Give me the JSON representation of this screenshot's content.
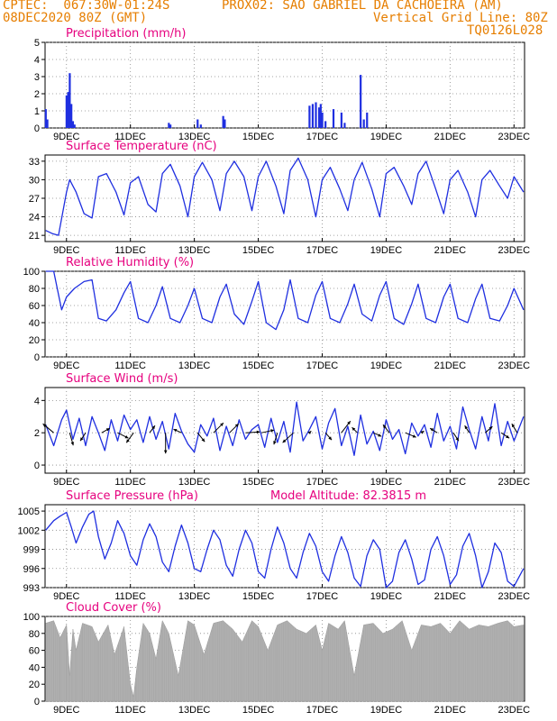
{
  "header": {
    "line1_left": "CPTEC:  067:30W-01:24S",
    "line1_right": "PROX02: SAO GABRIEL DA CACHOEIRA (AM)",
    "line2_left": "08DEC2020 80Z (GMT)",
    "line2_right": "Vertical Grid Line: 80Z",
    "line3_right": "TQ0126L028"
  },
  "colors": {
    "header": "#e67e00",
    "title": "#e6007e",
    "series": "#1f2fe0",
    "cloud": "#b0b0b0"
  },
  "x_ticks": [
    "9DEC",
    "11DEC",
    "13DEC",
    "15DEC",
    "17DEC",
    "19DEC",
    "21DEC",
    "23DEC"
  ],
  "x_tick_days": [
    9,
    11,
    13,
    15,
    17,
    19,
    21,
    23
  ],
  "x_range": [
    8.33,
    23.33
  ],
  "chart_data": [
    {
      "id": "precip",
      "type": "bar",
      "title": "Precipitation (mm/h)",
      "ylim": [
        0,
        5
      ],
      "yticks": [
        0,
        1,
        2,
        3,
        4,
        5
      ],
      "x": [
        8.35,
        8.4,
        9.0,
        9.05,
        9.1,
        9.15,
        9.2,
        9.25,
        12.2,
        12.25,
        13.1,
        13.2,
        13.9,
        13.95,
        16.6,
        16.7,
        16.8,
        16.9,
        16.95,
        17.0,
        17.1,
        17.35,
        17.6,
        17.7,
        18.2,
        18.3,
        18.4
      ],
      "values": [
        1.1,
        0.5,
        1.9,
        2.1,
        3.2,
        1.4,
        0.4,
        0.2,
        0.3,
        0.2,
        0.5,
        0.2,
        0.7,
        0.5,
        1.3,
        1.4,
        1.5,
        1.2,
        1.4,
        0.9,
        0.4,
        1.1,
        0.9,
        0.3,
        3.1,
        0.5,
        0.9
      ]
    },
    {
      "id": "temp",
      "type": "line",
      "title": "Surface Temperature (nC)",
      "ylim": [
        20,
        34
      ],
      "yticks": [
        21,
        24,
        27,
        30,
        33
      ],
      "x": [
        8.35,
        8.55,
        8.75,
        9.0,
        9.1,
        9.3,
        9.55,
        9.8,
        10.0,
        10.25,
        10.55,
        10.8,
        11.0,
        11.25,
        11.55,
        11.8,
        12.0,
        12.25,
        12.55,
        12.8,
        13.0,
        13.25,
        13.55,
        13.8,
        14.0,
        14.25,
        14.55,
        14.8,
        15.0,
        15.25,
        15.55,
        15.8,
        16.0,
        16.25,
        16.55,
        16.8,
        17.0,
        17.25,
        17.55,
        17.8,
        18.0,
        18.25,
        18.55,
        18.8,
        19.0,
        19.25,
        19.55,
        19.8,
        20.0,
        20.25,
        20.55,
        20.8,
        21.0,
        21.25,
        21.55,
        21.8,
        22.0,
        22.25,
        22.55,
        22.8,
        23.0,
        23.3
      ],
      "values": [
        21.8,
        21.3,
        21.0,
        28.0,
        30.0,
        28.0,
        24.5,
        23.8,
        30.5,
        31.0,
        28.0,
        24.3,
        29.5,
        30.5,
        26.0,
        24.8,
        31.0,
        32.5,
        29.0,
        24.0,
        30.5,
        32.8,
        30.0,
        25.0,
        31.0,
        33.0,
        30.5,
        25.0,
        30.5,
        33.0,
        29.0,
        24.5,
        31.5,
        33.5,
        30.0,
        24.0,
        30.0,
        32.0,
        28.5,
        25.0,
        30.0,
        32.8,
        28.5,
        24.0,
        31.0,
        32.0,
        29.0,
        26.0,
        31.0,
        33.0,
        28.5,
        24.5,
        30.0,
        31.5,
        28.0,
        24.0,
        30.0,
        31.5,
        29.0,
        27.0,
        30.5,
        28.0
      ]
    },
    {
      "id": "rh",
      "type": "line",
      "title": "Relative Humidity (%)",
      "ylim": [
        0,
        100
      ],
      "yticks": [
        0,
        20,
        40,
        60,
        80,
        100
      ],
      "x": [
        8.35,
        8.6,
        8.85,
        9.0,
        9.25,
        9.55,
        9.8,
        10.0,
        10.25,
        10.55,
        10.8,
        11.0,
        11.25,
        11.55,
        11.8,
        12.0,
        12.25,
        12.55,
        12.8,
        13.0,
        13.25,
        13.55,
        13.8,
        14.0,
        14.25,
        14.55,
        14.8,
        15.0,
        15.25,
        15.55,
        15.8,
        16.0,
        16.25,
        16.55,
        16.8,
        17.0,
        17.25,
        17.55,
        17.8,
        18.0,
        18.25,
        18.55,
        18.8,
        19.0,
        19.25,
        19.55,
        19.8,
        20.0,
        20.25,
        20.55,
        20.8,
        21.0,
        21.25,
        21.55,
        21.8,
        22.0,
        22.25,
        22.55,
        22.8,
        23.0,
        23.3
      ],
      "values": [
        100,
        100,
        55,
        70,
        80,
        88,
        90,
        45,
        42,
        55,
        75,
        88,
        45,
        40,
        60,
        82,
        45,
        40,
        60,
        80,
        45,
        40,
        70,
        85,
        50,
        38,
        65,
        88,
        40,
        32,
        55,
        90,
        45,
        40,
        72,
        88,
        45,
        40,
        62,
        85,
        50,
        42,
        72,
        88,
        45,
        38,
        62,
        85,
        45,
        40,
        70,
        85,
        45,
        40,
        68,
        85,
        45,
        42,
        60,
        80,
        55
      ]
    },
    {
      "id": "wind",
      "type": "line",
      "title": "Surface Wind (m/s)",
      "ylim": [
        -0.5,
        4.8
      ],
      "yticks": [
        0,
        2,
        4
      ],
      "x": [
        8.35,
        8.6,
        8.85,
        9.0,
        9.2,
        9.4,
        9.6,
        9.8,
        10.0,
        10.2,
        10.4,
        10.6,
        10.8,
        11.0,
        11.2,
        11.4,
        11.6,
        11.8,
        12.0,
        12.2,
        12.4,
        12.6,
        12.8,
        13.0,
        13.2,
        13.4,
        13.6,
        13.8,
        14.0,
        14.2,
        14.4,
        14.6,
        14.8,
        15.0,
        15.2,
        15.4,
        15.6,
        15.8,
        16.0,
        16.2,
        16.4,
        16.6,
        16.8,
        17.0,
        17.2,
        17.4,
        17.6,
        17.8,
        18.0,
        18.2,
        18.4,
        18.6,
        18.8,
        19.0,
        19.2,
        19.4,
        19.6,
        19.8,
        20.0,
        20.2,
        20.4,
        20.6,
        20.8,
        21.0,
        21.2,
        21.4,
        21.6,
        21.8,
        22.0,
        22.2,
        22.4,
        22.6,
        22.8,
        23.0,
        23.3
      ],
      "values": [
        2.5,
        1.2,
        2.8,
        3.4,
        1.6,
        2.9,
        1.2,
        3.0,
        2.0,
        0.9,
        2.8,
        1.5,
        3.1,
        2.2,
        2.8,
        1.4,
        3.0,
        1.6,
        2.7,
        1.0,
        3.2,
        2.1,
        1.3,
        0.8,
        2.5,
        1.8,
        2.9,
        0.9,
        2.4,
        1.2,
        2.8,
        1.6,
        2.2,
        2.5,
        1.1,
        2.9,
        1.4,
        2.7,
        0.8,
        3.9,
        1.5,
        2.2,
        3.0,
        1.0,
        2.6,
        3.5,
        1.2,
        2.4,
        0.6,
        3.1,
        1.3,
        2.1,
        0.9,
        2.8,
        1.6,
        2.2,
        0.7,
        2.6,
        1.8,
        2.5,
        1.1,
        3.2,
        1.5,
        2.4,
        1.0,
        3.6,
        2.2,
        1.0,
        3.0,
        1.5,
        3.8,
        1.2,
        2.7,
        1.5,
        3.0
      ],
      "barbs_x": [
        8.6,
        9.1,
        9.6,
        10.1,
        10.6,
        11.1,
        11.6,
        12.1,
        12.6,
        13.1,
        13.6,
        14.1,
        14.6,
        15.1,
        15.6,
        16.1,
        16.6,
        17.1,
        17.6,
        18.1,
        18.6,
        19.1,
        19.6,
        20.1,
        20.6,
        21.1,
        21.6,
        22.1,
        22.6,
        23.1
      ],
      "barbs_u": [
        -1.2,
        0.4,
        -0.6,
        0.9,
        1.2,
        -0.8,
        0.6,
        0.0,
        -0.9,
        0.8,
        1.1,
        1.0,
        1.6,
        1.4,
        -0.4,
        -1.2,
        0.2,
        0.7,
        1.0,
        -0.6,
        0.9,
        -0.7,
        1.2,
        0.3,
        -0.8,
        0.6,
        -0.5,
        0.8,
        0.9,
        -0.6
      ],
      "barbs_v": [
        1.0,
        -1.4,
        -0.9,
        0.5,
        -0.6,
        -1.1,
        0.8,
        -2.3,
        0.4,
        -1.0,
        1.1,
        1.0,
        0.1,
        0.3,
        -1.3,
        -1.1,
        0.2,
        -0.8,
        1.3,
        0.6,
        -0.4,
        0.9,
        -0.5,
        0.2,
        0.5,
        -0.9,
        0.8,
        0.7,
        -0.6,
        1.0
      ]
    },
    {
      "id": "press",
      "type": "line",
      "title": "Surface Pressure (hPa)",
      "subtitle": "Model Altitude: 82.3815 m",
      "ylim": [
        993,
        1006
      ],
      "yticks": [
        993,
        996,
        999,
        1002,
        1005
      ],
      "x": [
        8.35,
        8.6,
        8.8,
        9.0,
        9.15,
        9.3,
        9.5,
        9.7,
        9.85,
        10.0,
        10.2,
        10.4,
        10.6,
        10.8,
        11.0,
        11.2,
        11.4,
        11.6,
        11.8,
        12.0,
        12.2,
        12.4,
        12.6,
        12.8,
        13.0,
        13.2,
        13.4,
        13.6,
        13.8,
        14.0,
        14.2,
        14.4,
        14.6,
        14.8,
        15.0,
        15.2,
        15.4,
        15.6,
        15.8,
        16.0,
        16.2,
        16.4,
        16.6,
        16.8,
        17.0,
        17.2,
        17.4,
        17.6,
        17.8,
        18.0,
        18.2,
        18.4,
        18.6,
        18.8,
        19.0,
        19.2,
        19.4,
        19.6,
        19.8,
        20.0,
        20.2,
        20.4,
        20.6,
        20.8,
        21.0,
        21.2,
        21.4,
        21.6,
        21.8,
        22.0,
        22.2,
        22.4,
        22.6,
        22.8,
        23.0,
        23.3
      ],
      "values": [
        1002.0,
        1003.5,
        1004.2,
        1004.8,
        1002.5,
        1000.0,
        1002.5,
        1004.5,
        1005.0,
        1001.0,
        997.5,
        1000.0,
        1003.5,
        1001.5,
        998.0,
        996.5,
        1000.5,
        1003.0,
        1001.0,
        997.0,
        995.5,
        999.5,
        1002.8,
        1000.0,
        996.0,
        995.5,
        999.0,
        1002.0,
        1000.5,
        996.5,
        994.8,
        999.0,
        1002.0,
        1000.0,
        995.5,
        994.5,
        999.0,
        1002.5,
        1000.0,
        996.0,
        994.5,
        998.5,
        1001.5,
        999.5,
        995.5,
        994.0,
        998.0,
        1001.0,
        998.5,
        994.5,
        993.2,
        998.0,
        1000.5,
        999.0,
        993.0,
        994.0,
        998.5,
        1000.5,
        997.5,
        993.5,
        994.2,
        999.0,
        1001.0,
        998.0,
        993.5,
        995.0,
        999.5,
        1001.5,
        998.0,
        993.0,
        995.5,
        1000.0,
        998.5,
        994.0,
        993.2,
        996.0
      ]
    },
    {
      "id": "cloud",
      "type": "area",
      "title": "Cloud Cover (%)",
      "ylim": [
        0,
        100
      ],
      "yticks": [
        0,
        20,
        40,
        60,
        80,
        100
      ],
      "x": [
        8.35,
        8.6,
        8.8,
        9.0,
        9.1,
        9.2,
        9.3,
        9.5,
        9.8,
        10.0,
        10.3,
        10.5,
        10.8,
        11.0,
        11.1,
        11.2,
        11.4,
        11.6,
        11.8,
        12.0,
        12.2,
        12.5,
        12.8,
        13.0,
        13.3,
        13.6,
        13.9,
        14.2,
        14.5,
        14.8,
        15.0,
        15.3,
        15.6,
        15.9,
        16.2,
        16.5,
        16.8,
        17.0,
        17.2,
        17.5,
        17.7,
        18.0,
        18.3,
        18.6,
        18.9,
        19.2,
        19.5,
        19.8,
        20.1,
        20.4,
        20.7,
        21.0,
        21.3,
        21.6,
        21.9,
        22.2,
        22.5,
        22.8,
        23.0,
        23.3
      ],
      "values": [
        92,
        95,
        75,
        90,
        30,
        85,
        60,
        92,
        88,
        70,
        90,
        55,
        88,
        20,
        5,
        40,
        92,
        80,
        50,
        95,
        80,
        30,
        95,
        90,
        55,
        92,
        95,
        85,
        70,
        95,
        88,
        60,
        90,
        95,
        85,
        80,
        90,
        60,
        92,
        85,
        95,
        30,
        90,
        92,
        80,
        85,
        95,
        60,
        90,
        88,
        92,
        80,
        95,
        85,
        90,
        88,
        92,
        95,
        88,
        90
      ]
    }
  ]
}
